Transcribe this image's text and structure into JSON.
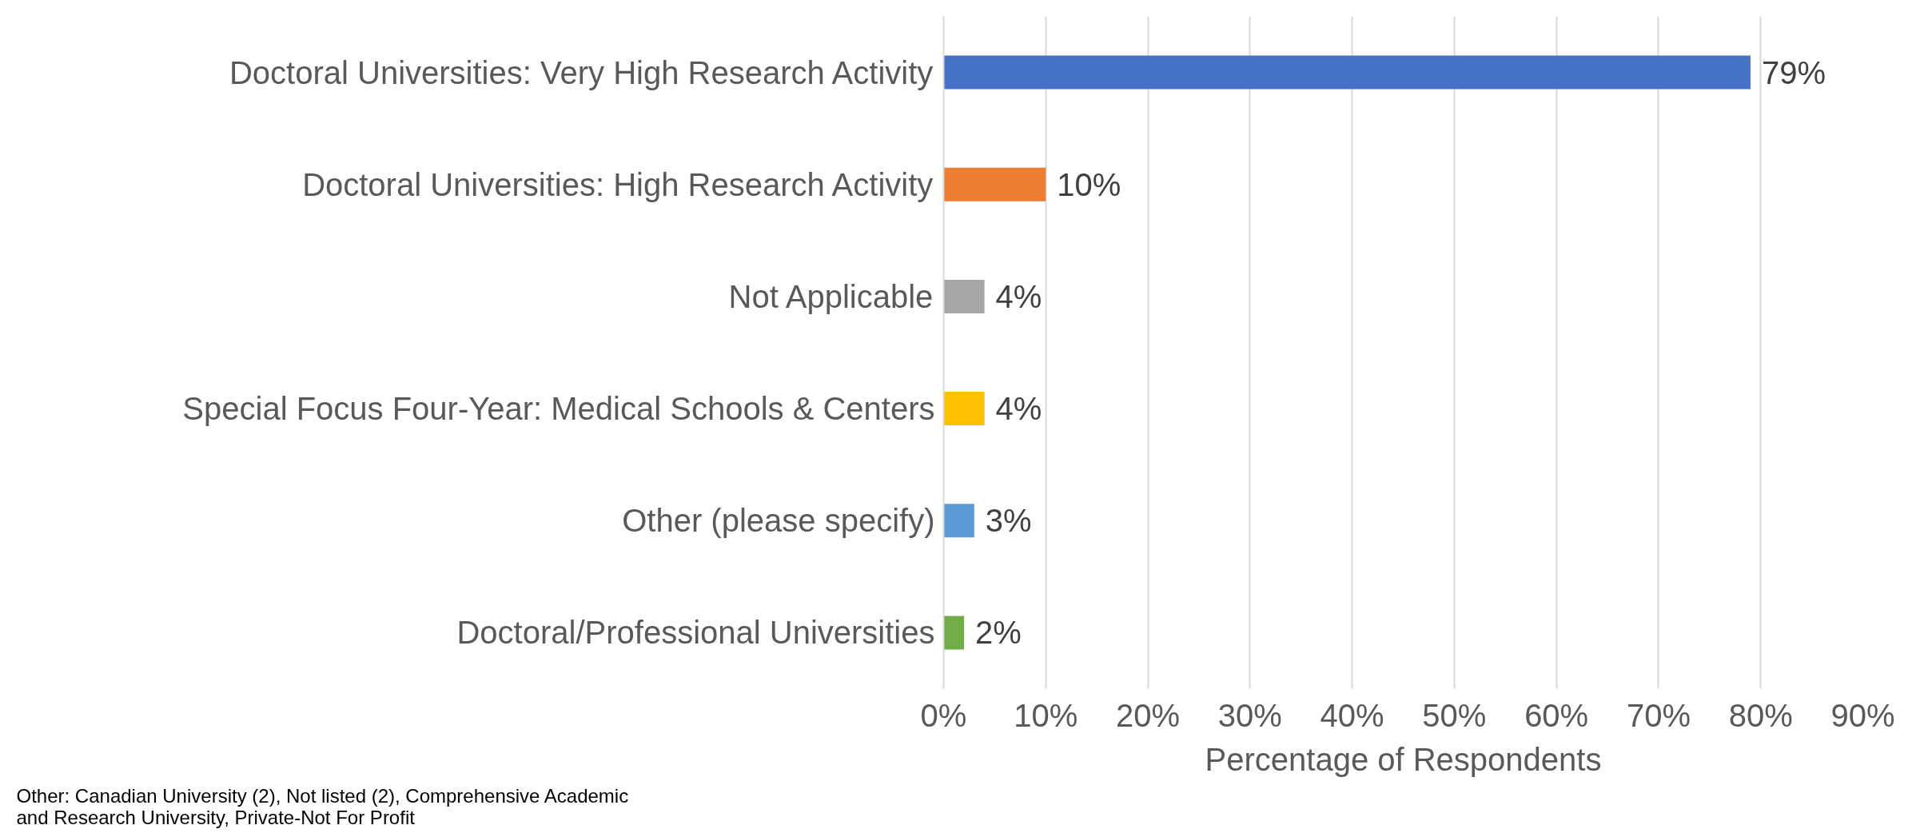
{
  "chart_data": {
    "type": "bar",
    "orientation": "horizontal",
    "xlabel": "Percentage of Respondents",
    "categories": [
      "Doctoral Universities: Very High Research Activity",
      "Doctoral Universities: High Research Activity",
      "Not Applicable",
      "Special Focus Four-Year: Medical Schools & Centers",
      "Other (please specify)",
      "Doctoral/Professional Universities"
    ],
    "values": [
      79,
      10,
      4,
      4,
      3,
      2
    ],
    "colors": [
      "#4472c4",
      "#ed7d31",
      "#a5a5a5",
      "#ffc000",
      "#5b9bd5",
      "#70ad47"
    ],
    "value_labels": [
      "79%",
      "10%",
      "4%",
      "4%",
      "3%",
      "2%"
    ],
    "xlim": [
      0,
      90
    ],
    "xticks": [
      {
        "value": 0,
        "label": "0%"
      },
      {
        "value": 10,
        "label": "10%"
      },
      {
        "value": 20,
        "label": "20%"
      },
      {
        "value": 30,
        "label": "30%"
      },
      {
        "value": 40,
        "label": "40%"
      },
      {
        "value": 50,
        "label": "50%"
      },
      {
        "value": 60,
        "label": "60%"
      },
      {
        "value": 70,
        "label": "70%"
      },
      {
        "value": 80,
        "label": "80%"
      },
      {
        "value": 90,
        "label": "90%"
      }
    ],
    "grid": "x",
    "annotations": [
      "Other: Canadian University (2), Not listed (2), Comprehensive Academic\nand Research University, Private-Not For Profit"
    ]
  }
}
